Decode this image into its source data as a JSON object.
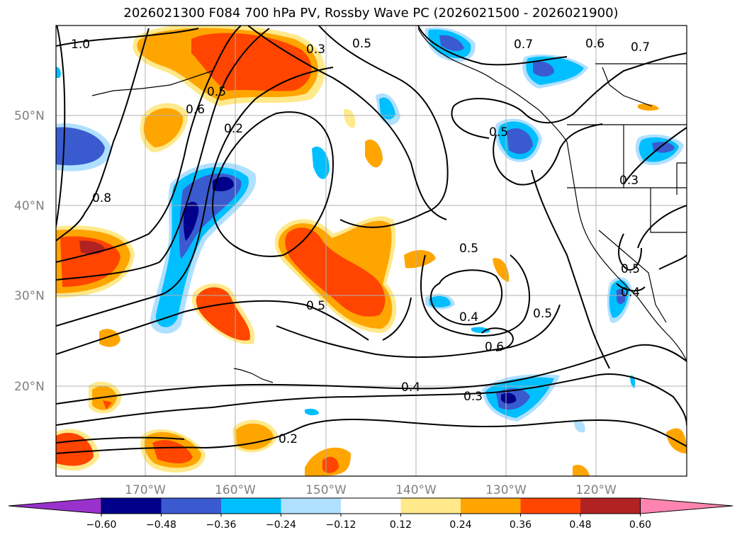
{
  "title": "2026021300 F084 700 hPa PV, Rossby Wave PC (2026021500 - 2026021900)",
  "map": {
    "lat_labels": [
      "50°N",
      "40°N",
      "30°N",
      "20°N"
    ],
    "lon_labels": [
      "170°W",
      "160°W",
      "150°W",
      "140°W",
      "130°W",
      "120°W"
    ],
    "gridline_color": "#b0b0b0"
  },
  "contour_labels": [
    "1.0",
    "0.5",
    "0.3",
    "0.7",
    "0.6",
    "0.7",
    "0.6",
    "0.5",
    "0.2",
    "0.5",
    "0.8",
    "0.3",
    "0.5",
    "0.5",
    "0.4",
    "0.4",
    "0.6",
    "0.5",
    "0.5",
    "0.4",
    "0.3",
    "0.2"
  ],
  "colorbar": {
    "colors": [
      "#9932cc",
      "#00008b",
      "#3a5bcf",
      "#00bfff",
      "#b0e0ff",
      "#ffffff",
      "#ffe98a",
      "#ffa500",
      "#ff4500",
      "#b22222",
      "#ff85b0"
    ],
    "tick_labels": [
      "−0.60",
      "−0.48",
      "−0.36",
      "−0.24",
      "−0.12",
      "0.12",
      "0.24",
      "0.36",
      "0.48",
      "0.60"
    ]
  }
}
